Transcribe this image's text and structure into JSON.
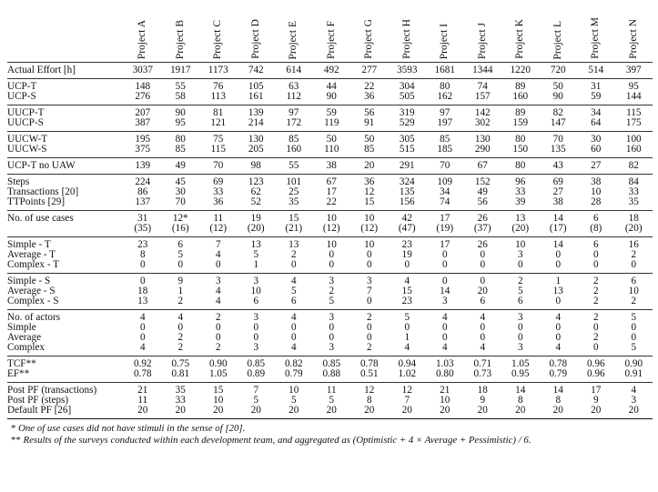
{
  "projects": [
    "Project A",
    "Project B",
    "Project C",
    "Project D",
    "Project E",
    "Project F",
    "Project G",
    "Project H",
    "Project I",
    "Project J",
    "Project K",
    "Project L",
    "Project M",
    "Project N"
  ],
  "groups": [
    {
      "rows": [
        {
          "label": "Actual Effort [h]",
          "values": [
            "3037",
            "1917",
            "1173",
            "742",
            "614",
            "492",
            "277",
            "3593",
            "1681",
            "1344",
            "1220",
            "720",
            "514",
            "397"
          ]
        }
      ]
    },
    {
      "rows": [
        {
          "label": "UCP-T",
          "values": [
            "148",
            "55",
            "76",
            "105",
            "63",
            "44",
            "22",
            "304",
            "80",
            "74",
            "89",
            "50",
            "31",
            "95"
          ]
        },
        {
          "label": "UCP-S",
          "values": [
            "276",
            "58",
            "113",
            "161",
            "112",
            "90",
            "36",
            "505",
            "162",
            "157",
            "160",
            "90",
            "59",
            "144"
          ]
        }
      ]
    },
    {
      "rows": [
        {
          "label": "UUCP-T",
          "values": [
            "207",
            "90",
            "81",
            "139",
            "97",
            "59",
            "56",
            "319",
            "97",
            "142",
            "89",
            "82",
            "34",
            "115"
          ]
        },
        {
          "label": "UUCP-S",
          "values": [
            "387",
            "95",
            "121",
            "214",
            "172",
            "119",
            "91",
            "529",
            "197",
            "302",
            "159",
            "147",
            "64",
            "175"
          ]
        }
      ]
    },
    {
      "rows": [
        {
          "label": "UUCW-T",
          "values": [
            "195",
            "80",
            "75",
            "130",
            "85",
            "50",
            "50",
            "305",
            "85",
            "130",
            "80",
            "70",
            "30",
            "100"
          ]
        },
        {
          "label": "UUCW-S",
          "values": [
            "375",
            "85",
            "115",
            "205",
            "160",
            "110",
            "85",
            "515",
            "185",
            "290",
            "150",
            "135",
            "60",
            "160"
          ]
        }
      ]
    },
    {
      "rows": [
        {
          "label": "UCP-T no UAW",
          "values": [
            "139",
            "49",
            "70",
            "98",
            "55",
            "38",
            "20",
            "291",
            "70",
            "67",
            "80",
            "43",
            "27",
            "82"
          ]
        }
      ]
    },
    {
      "rows": [
        {
          "label": "Steps",
          "values": [
            "224",
            "45",
            "69",
            "123",
            "101",
            "67",
            "36",
            "324",
            "109",
            "152",
            "96",
            "69",
            "38",
            "84"
          ]
        },
        {
          "label": "Transactions [20]",
          "values": [
            "86",
            "30",
            "33",
            "62",
            "25",
            "17",
            "12",
            "135",
            "34",
            "49",
            "33",
            "27",
            "10",
            "33"
          ]
        },
        {
          "label": "TTPoints [29]",
          "values": [
            "137",
            "70",
            "36",
            "52",
            "35",
            "22",
            "15",
            "156",
            "74",
            "56",
            "39",
            "38",
            "28",
            "35"
          ]
        }
      ]
    },
    {
      "rows": [
        {
          "label": "No. of use cases",
          "values": [
            "31",
            "12*",
            "11",
            "19",
            "15",
            "10",
            "10",
            "42",
            "17",
            "26",
            "13",
            "14",
            "6",
            "18"
          ]
        },
        {
          "label": "",
          "values": [
            "(35)",
            "(16)",
            "(12)",
            "(20)",
            "(21)",
            "(12)",
            "(12)",
            "(47)",
            "(19)",
            "(37)",
            "(20)",
            "(17)",
            "(8)",
            "(20)"
          ]
        }
      ]
    },
    {
      "rows": [
        {
          "label": "Simple - T",
          "values": [
            "23",
            "6",
            "7",
            "13",
            "13",
            "10",
            "10",
            "23",
            "17",
            "26",
            "10",
            "14",
            "6",
            "16"
          ]
        },
        {
          "label": "Average - T",
          "values": [
            "8",
            "5",
            "4",
            "5",
            "2",
            "0",
            "0",
            "19",
            "0",
            "0",
            "3",
            "0",
            "0",
            "2"
          ]
        },
        {
          "label": "Complex - T",
          "values": [
            "0",
            "0",
            "0",
            "1",
            "0",
            "0",
            "0",
            "0",
            "0",
            "0",
            "0",
            "0",
            "0",
            "0"
          ]
        }
      ]
    },
    {
      "rows": [
        {
          "label": "Simple - S",
          "values": [
            "0",
            "9",
            "3",
            "3",
            "4",
            "3",
            "3",
            "4",
            "0",
            "0",
            "2",
            "1",
            "2",
            "6"
          ]
        },
        {
          "label": "Average - S",
          "values": [
            "18",
            "1",
            "4",
            "10",
            "5",
            "2",
            "7",
            "15",
            "14",
            "20",
            "5",
            "13",
            "2",
            "10"
          ]
        },
        {
          "label": "Complex - S",
          "values": [
            "13",
            "2",
            "4",
            "6",
            "6",
            "5",
            "0",
            "23",
            "3",
            "6",
            "6",
            "0",
            "2",
            "2"
          ]
        }
      ]
    },
    {
      "rows": [
        {
          "label": "No. of actors",
          "values": [
            "4",
            "4",
            "2",
            "3",
            "4",
            "3",
            "2",
            "5",
            "4",
            "4",
            "3",
            "4",
            "2",
            "5"
          ]
        },
        {
          "label": "Simple",
          "values": [
            "0",
            "0",
            "0",
            "0",
            "0",
            "0",
            "0",
            "0",
            "0",
            "0",
            "0",
            "0",
            "0",
            "0"
          ]
        },
        {
          "label": "Average",
          "values": [
            "0",
            "2",
            "0",
            "0",
            "0",
            "0",
            "0",
            "1",
            "0",
            "0",
            "0",
            "0",
            "2",
            "0"
          ]
        },
        {
          "label": "Complex",
          "values": [
            "4",
            "2",
            "2",
            "3",
            "4",
            "3",
            "2",
            "4",
            "4",
            "4",
            "3",
            "4",
            "0",
            "5"
          ]
        }
      ]
    },
    {
      "rows": [
        {
          "label": "TCF**",
          "values": [
            "0.92",
            "0.75",
            "0.90",
            "0.85",
            "0.82",
            "0.85",
            "0.78",
            "0.94",
            "1.03",
            "0.71",
            "1.05",
            "0.78",
            "0.96",
            "0.90"
          ]
        },
        {
          "label": "EF**",
          "values": [
            "0.78",
            "0.81",
            "1.05",
            "0.89",
            "0.79",
            "0.88",
            "0.51",
            "1.02",
            "0.80",
            "0.73",
            "0.95",
            "0.79",
            "0.96",
            "0.91"
          ]
        }
      ]
    },
    {
      "rows": [
        {
          "label": "Post PF (transactions)",
          "values": [
            "21",
            "35",
            "15",
            "7",
            "10",
            "11",
            "12",
            "12",
            "21",
            "18",
            "14",
            "14",
            "17",
            "4"
          ]
        },
        {
          "label": "Post PF (steps)",
          "values": [
            "11",
            "33",
            "10",
            "5",
            "5",
            "5",
            "8",
            "7",
            "10",
            "9",
            "8",
            "8",
            "9",
            "3"
          ]
        },
        {
          "label": "Default PF [26]",
          "values": [
            "20",
            "20",
            "20",
            "20",
            "20",
            "20",
            "20",
            "20",
            "20",
            "20",
            "20",
            "20",
            "20",
            "20"
          ]
        }
      ]
    }
  ],
  "footnotes": [
    {
      "mark": "*",
      "text": "One of use cases did not have stimuli in the sense of [20]."
    },
    {
      "mark": "**",
      "text": "Results of the surveys conducted within each development team, and aggregated as (Optimistic + 4 × Average + Pessimistic) / 6."
    }
  ]
}
